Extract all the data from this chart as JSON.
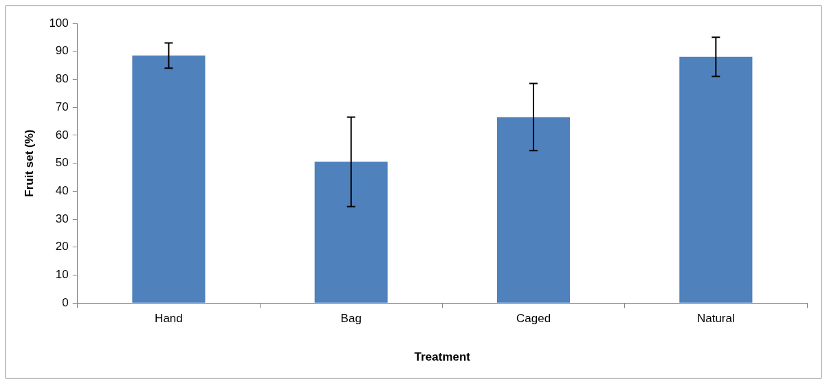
{
  "chart_data": {
    "type": "bar",
    "xlabel": "Treatment",
    "ylabel": "Fruit set (%)",
    "categories": [
      "Hand",
      "Bag",
      "Caged",
      "Natural"
    ],
    "values": [
      88.5,
      50.5,
      66.5,
      88
    ],
    "errors": [
      4.5,
      16,
      12,
      7
    ],
    "color": "#4f81bd",
    "ylim": [
      0,
      100
    ],
    "yticks": [
      0,
      10,
      20,
      30,
      40,
      50,
      60,
      70,
      80,
      90,
      100
    ],
    "grid": false,
    "legend": false
  }
}
